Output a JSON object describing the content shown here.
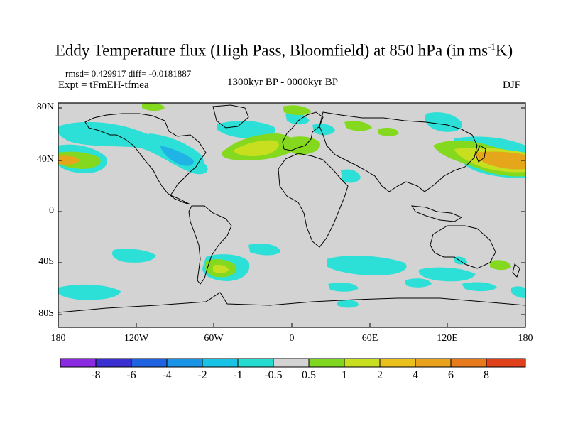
{
  "title": {
    "prefix": "Eddy Temperature flux (High Pass, Bloomfield) at 850 hPa (in ms",
    "sup": "-1",
    "suffix": "K)"
  },
  "stats": "rmsd= 0.429917 diff= -0.0181887",
  "expt": "Expt = tFmEH-tfmea",
  "period": "1300kyr BP - 0000kyr BP",
  "season": "DJF",
  "lat_ticks": [
    "80N",
    "40N",
    "0",
    "40S",
    "80S"
  ],
  "lon_ticks": [
    "180",
    "120W",
    "60W",
    "0",
    "60E",
    "120E",
    "180"
  ],
  "colorbar": {
    "labels": [
      "-8",
      "-6",
      "-4",
      "-2",
      "-1",
      "-0.5",
      "0.5",
      "1",
      "2",
      "4",
      "6",
      "8"
    ],
    "colors": [
      "#8a2be2",
      "#3a2fd0",
      "#1f63e0",
      "#1a94e6",
      "#19c3e6",
      "#26dcd0",
      "#d3d3d3",
      "#7fd81f",
      "#c7df1e",
      "#e9c01c",
      "#e8a21c",
      "#e77a1b",
      "#e0401a"
    ]
  },
  "colors": {
    "land_gray": "#d3d3d3",
    "cyan": "#2ce0d8",
    "lightblue": "#1fb3e6",
    "green": "#84d81e",
    "yellowgreen": "#c7df1e",
    "orange": "#e6a61c"
  }
}
